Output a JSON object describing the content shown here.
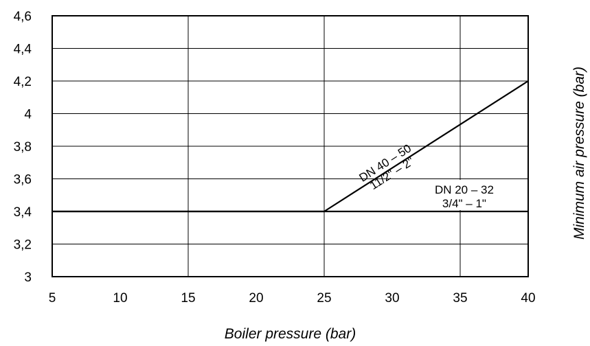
{
  "chart_data": {
    "type": "line",
    "title": "",
    "xlabel": "Boiler pressure (bar)",
    "ylabel": "Minimum air pressure (bar)",
    "xlim": [
      5,
      40
    ],
    "ylim": [
      3,
      4.6
    ],
    "x_ticks": [
      "5",
      "10",
      "15",
      "20",
      "25",
      "30",
      "35",
      "40"
    ],
    "x_tick_values": [
      5,
      10,
      15,
      20,
      25,
      30,
      35,
      40
    ],
    "y_ticks": [
      "3",
      "3,2",
      "3,4",
      "3,6",
      "3,8",
      "4",
      "4,2",
      "4,4",
      "4,6"
    ],
    "y_tick_values": [
      3,
      3.2,
      3.4,
      3.6,
      3.8,
      4,
      4.2,
      4.4,
      4.6
    ],
    "x_grid": [
      15,
      25,
      35
    ],
    "y_grid": [
      3.2,
      3.4,
      3.6,
      3.8,
      4,
      4.2,
      4.4
    ],
    "grid": true,
    "series": [
      {
        "name": "DN 40 – 50",
        "sub_label": "11/2\" – 2\"",
        "color": "#000000",
        "x": [
          5,
          25,
          40
        ],
        "y": [
          3.4,
          3.4,
          4.2
        ]
      },
      {
        "name": "DN 20 – 32",
        "sub_label": "3/4\" – 1\"",
        "color": "#000000",
        "x": [
          5,
          40
        ],
        "y": [
          3.4,
          3.4
        ]
      }
    ]
  }
}
